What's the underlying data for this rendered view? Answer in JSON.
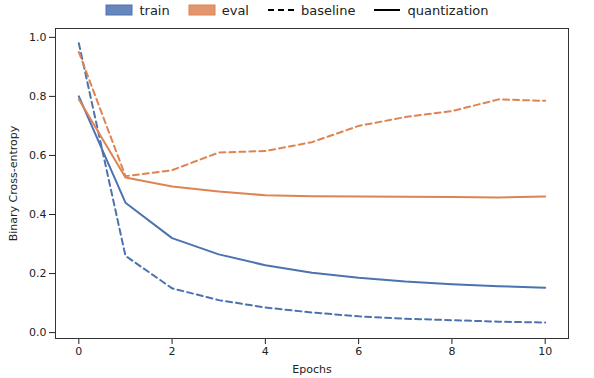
{
  "chart_data": {
    "type": "line",
    "x_label": "Epochs",
    "y_label": "Binary Cross-entropy",
    "x": [
      0,
      1,
      2,
      3,
      4,
      5,
      6,
      7,
      8,
      9,
      10
    ],
    "series": [
      {
        "name": "train",
        "group": "baseline",
        "color": "#4c72b0",
        "line_style": "dashed",
        "values": [
          0.98,
          0.26,
          0.15,
          0.11,
          0.085,
          0.068,
          0.055,
          0.047,
          0.042,
          0.037,
          0.034
        ]
      },
      {
        "name": "train",
        "group": "quantization",
        "color": "#4c72b0",
        "line_style": "solid",
        "values": [
          0.8,
          0.44,
          0.32,
          0.265,
          0.228,
          0.203,
          0.186,
          0.173,
          0.164,
          0.157,
          0.152
        ]
      },
      {
        "name": "eval",
        "group": "baseline",
        "color": "#dd8452",
        "line_style": "dashed",
        "values": [
          0.95,
          0.53,
          0.55,
          0.61,
          0.615,
          0.645,
          0.7,
          0.73,
          0.75,
          0.79,
          0.785
        ]
      },
      {
        "name": "eval",
        "group": "quantization",
        "color": "#dd8452",
        "line_style": "solid",
        "values": [
          0.79,
          0.525,
          0.495,
          0.478,
          0.465,
          0.462,
          0.461,
          0.46,
          0.459,
          0.458,
          0.461
        ]
      }
    ],
    "xlim": [
      -0.5,
      10.5
    ],
    "xticks": [
      0,
      2,
      4,
      6,
      8,
      10
    ],
    "ylim": [
      -0.02,
      1.03
    ],
    "yticks": [
      {
        "value": 0,
        "label": "0.0"
      },
      {
        "value": 0.2,
        "label": "0.2"
      },
      {
        "value": 0.4,
        "label": "0.4"
      },
      {
        "value": 0.6,
        "label": "0.6"
      },
      {
        "value": 0.8,
        "label": "0.8"
      },
      {
        "value": 1,
        "label": "1.0"
      }
    ],
    "grid": false,
    "legend": "top"
  }
}
